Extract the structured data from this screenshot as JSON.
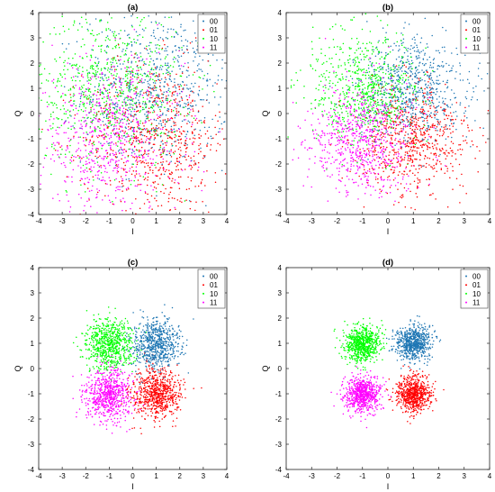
{
  "chart_data": [
    {
      "type": "scatter",
      "title": "(a)",
      "xlabel": "I",
      "ylabel": "Q",
      "xlim": [
        -4,
        4
      ],
      "ylim": [
        -4,
        4
      ],
      "xticks": [
        "-4",
        "-3",
        "-2",
        "-1",
        "0",
        "1",
        "2",
        "3",
        "4"
      ],
      "yticks": [
        "-4",
        "-3",
        "-2",
        "-1",
        "0",
        "1",
        "2",
        "3",
        "4"
      ],
      "legend_position": "top-right",
      "series": [
        {
          "name": "00",
          "color": "#1f77b4",
          "center": [
            1,
            1
          ],
          "spread": 1.55,
          "samples": 700
        },
        {
          "name": "01",
          "color": "#ff0000",
          "center": [
            1,
            -1
          ],
          "spread": 1.55,
          "samples": 700
        },
        {
          "name": "10",
          "color": "#00ff00",
          "center": [
            -1,
            1
          ],
          "spread": 1.55,
          "samples": 700
        },
        {
          "name": "11",
          "color": "#ff00ff",
          "center": [
            -1,
            -1
          ],
          "spread": 1.55,
          "samples": 700
        }
      ]
    },
    {
      "type": "scatter",
      "title": "(b)",
      "xlabel": "I",
      "ylabel": "Q",
      "xlim": [
        -4,
        4
      ],
      "ylim": [
        -4,
        4
      ],
      "xticks": [
        "-4",
        "-3",
        "-2",
        "-1",
        "0",
        "1",
        "2",
        "3",
        "4"
      ],
      "yticks": [
        "-4",
        "-3",
        "-2",
        "-1",
        "0",
        "1",
        "2",
        "3",
        "4"
      ],
      "legend_position": "top-right",
      "series": [
        {
          "name": "00",
          "color": "#1f77b4",
          "center": [
            1,
            1
          ],
          "spread": 1.05,
          "samples": 700
        },
        {
          "name": "01",
          "color": "#ff0000",
          "center": [
            1,
            -1
          ],
          "spread": 1.05,
          "samples": 700
        },
        {
          "name": "10",
          "color": "#00ff00",
          "center": [
            -1,
            1
          ],
          "spread": 1.05,
          "samples": 700
        },
        {
          "name": "11",
          "color": "#ff00ff",
          "center": [
            -1,
            -1
          ],
          "spread": 1.05,
          "samples": 700
        }
      ]
    },
    {
      "type": "scatter",
      "title": "(c)",
      "xlabel": "I",
      "ylabel": "Q",
      "xlim": [
        -4,
        4
      ],
      "ylim": [
        -4,
        4
      ],
      "xticks": [
        "-4",
        "-3",
        "-2",
        "-1",
        "0",
        "1",
        "2",
        "3",
        "4"
      ],
      "yticks": [
        "-4",
        "-3",
        "-2",
        "-1",
        "0",
        "1",
        "2",
        "3",
        "4"
      ],
      "legend_position": "top-right",
      "series": [
        {
          "name": "00",
          "color": "#1f77b4",
          "center": [
            1,
            1
          ],
          "spread": 0.5,
          "samples": 700
        },
        {
          "name": "01",
          "color": "#ff0000",
          "center": [
            1,
            -1
          ],
          "spread": 0.5,
          "samples": 700
        },
        {
          "name": "10",
          "color": "#00ff00",
          "center": [
            -1,
            1
          ],
          "spread": 0.5,
          "samples": 700
        },
        {
          "name": "11",
          "color": "#ff00ff",
          "center": [
            -1,
            -1
          ],
          "spread": 0.5,
          "samples": 700
        }
      ]
    },
    {
      "type": "scatter",
      "title": "(d)",
      "xlabel": "I",
      "ylabel": "Q",
      "xlim": [
        -4,
        4
      ],
      "ylim": [
        -4,
        4
      ],
      "xticks": [
        "-4",
        "-3",
        "-2",
        "-1",
        "0",
        "1",
        "2",
        "3",
        "4"
      ],
      "yticks": [
        "-4",
        "-3",
        "-2",
        "-1",
        "0",
        "1",
        "2",
        "3",
        "4"
      ],
      "legend_position": "top-right",
      "series": [
        {
          "name": "00",
          "color": "#1f77b4",
          "center": [
            1,
            1
          ],
          "spread": 0.35,
          "samples": 700
        },
        {
          "name": "01",
          "color": "#ff0000",
          "center": [
            1,
            -1
          ],
          "spread": 0.35,
          "samples": 700
        },
        {
          "name": "10",
          "color": "#00ff00",
          "center": [
            -1,
            1
          ],
          "spread": 0.35,
          "samples": 700
        },
        {
          "name": "11",
          "color": "#ff00ff",
          "center": [
            -1,
            -1
          ],
          "spread": 0.35,
          "samples": 700
        }
      ]
    }
  ]
}
